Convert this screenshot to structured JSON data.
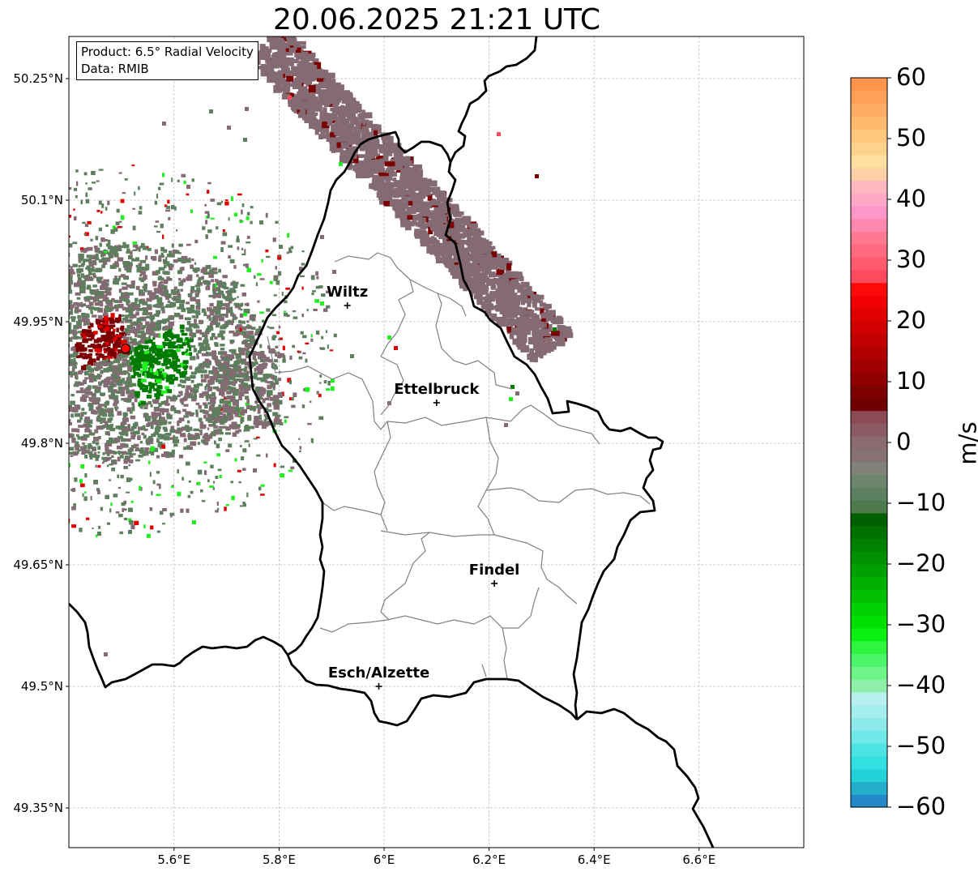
{
  "title": "20.06.2025 21:21 UTC",
  "info_box": {
    "product": "Product: 6.5° Radial Velocity",
    "data": "Data: RMIB"
  },
  "axes": {
    "lat_ticks": [
      "50.25°N",
      "50.1°N",
      "49.95°N",
      "49.8°N",
      "49.65°N",
      "49.5°N",
      "49.35°N"
    ],
    "lat_values": [
      50.25,
      50.1,
      49.95,
      49.8,
      49.65,
      49.5,
      49.35
    ],
    "lon_ticks": [
      "5.6°E",
      "5.8°E",
      "6°E",
      "6.2°E",
      "6.4°E",
      "6.6°E"
    ],
    "lon_values": [
      5.6,
      5.8,
      6.0,
      6.2,
      6.4,
      6.6
    ],
    "lon_range": [
      5.4,
      6.8
    ],
    "lat_range": [
      49.3,
      50.3
    ],
    "gridlines": true
  },
  "cities": [
    {
      "name": "Wiltz",
      "lon": 5.93,
      "lat": 49.97
    },
    {
      "name": "Ettelbruck",
      "lon": 6.1,
      "lat": 49.85
    },
    {
      "name": "Findel",
      "lon": 6.21,
      "lat": 49.627
    },
    {
      "name": "Esch/Alzette",
      "lon": 5.99,
      "lat": 49.5
    }
  ],
  "radar_site": {
    "lon": 5.505,
    "lat": 49.914,
    "color": "#ff0000"
  },
  "colorbar": {
    "label": "m/s",
    "min": -60,
    "max": 60,
    "tick_values": [
      60,
      50,
      40,
      30,
      20,
      10,
      0,
      -10,
      -20,
      -30,
      -40,
      -50,
      -60
    ],
    "tick_labels": [
      "60",
      "50",
      "40",
      "30",
      "20",
      "10",
      "0",
      "−10",
      "−20",
      "−30",
      "−40",
      "−50",
      "−60"
    ],
    "colors": [
      "#2389c9",
      "#23aecb",
      "#23d2d9",
      "#33dfe0",
      "#4ee3e3",
      "#6ee8e8",
      "#8eeaea",
      "#a5eeee",
      "#b8f0f0",
      "#8ef0a8",
      "#6ef58a",
      "#4cf56a",
      "#2ef540",
      "#0af010",
      "#00e000",
      "#00d000",
      "#00c000",
      "#00b000",
      "#00a000",
      "#009000",
      "#008000",
      "#007000",
      "#006000",
      "#4e7b4e",
      "#5c8060",
      "#6b866d",
      "#82827a",
      "#867272",
      "#8a6b72",
      "#8a5b65",
      "#8a4b55",
      "#700000",
      "#7c0000",
      "#900000",
      "#a00000",
      "#b00000",
      "#c00000",
      "#d00000",
      "#e00000",
      "#f00000",
      "#ff0a0a",
      "#ff4a5e",
      "#ff5a6e",
      "#ff6a80",
      "#ff7a90",
      "#ff88b0",
      "#ff96c8",
      "#ffa8c8",
      "#ffb8c0",
      "#ffd0a8",
      "#ffe0a0",
      "#ffd28c",
      "#ffc87c",
      "#ffba70",
      "#ffac64",
      "#ffa058",
      "#ff944c"
    ]
  },
  "echo_colors": {
    "inbound_strong": "#007a00",
    "inbound_weak": "#5e7f5e",
    "neutral": "#846a72",
    "outbound_strong": "#7c0000",
    "bright_green": "#20f020",
    "red": "#e00000"
  }
}
